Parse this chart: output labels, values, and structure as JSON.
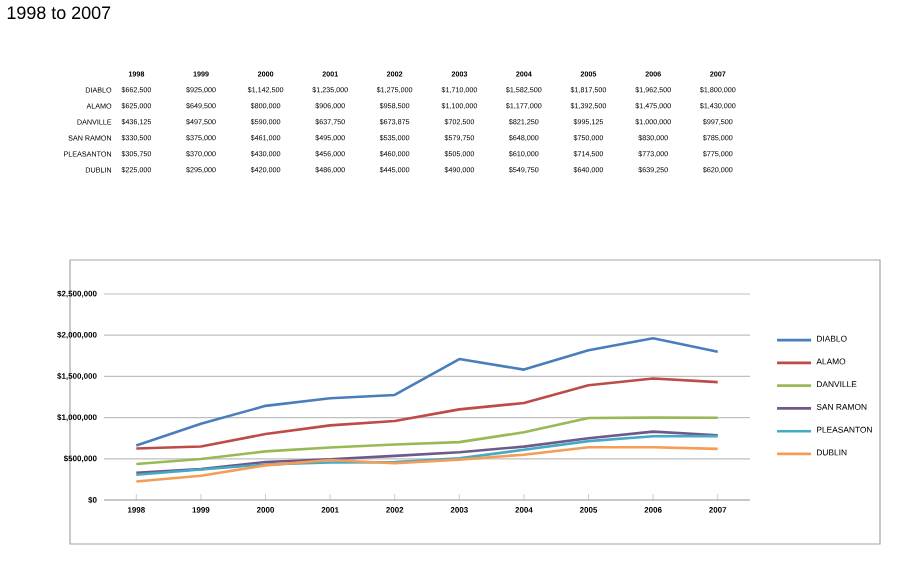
{
  "chart_data": {
    "type": "line",
    "title": "1998 to 2007",
    "categories": [
      "1998",
      "1999",
      "2000",
      "2001",
      "2002",
      "2003",
      "2004",
      "2005",
      "2006",
      "2007"
    ],
    "series": [
      {
        "name": "DIABLO",
        "color": "#4a7ebb",
        "values": [
          662500,
          925000,
          1142500,
          1235000,
          1275000,
          1710000,
          1582500,
          1817500,
          1962500,
          1800000
        ],
        "value_labels": [
          "$662,500",
          "$925,000",
          "$1,142,500",
          "$1,235,000",
          "$1,275,000",
          "$1,710,000",
          "$1,582,500",
          "$1,817,500",
          "$1,962,500",
          "$1,800,000"
        ]
      },
      {
        "name": "ALAMO",
        "color": "#be4b48",
        "values": [
          625000,
          649500,
          800000,
          906000,
          958500,
          1100000,
          1177000,
          1392500,
          1475000,
          1430000
        ],
        "value_labels": [
          "$625,000",
          "$649,500",
          "$800,000",
          "$906,000",
          "$958,500",
          "$1,100,000",
          "$1,177,000",
          "$1,392,500",
          "$1,475,000",
          "$1,430,000"
        ]
      },
      {
        "name": "DANVILLE",
        "color": "#98b954",
        "values": [
          436125,
          497500,
          590000,
          637750,
          673875,
          702500,
          821250,
          995125,
          1000000,
          997500
        ],
        "value_labels": [
          "$436,125",
          "$497,500",
          "$590,000",
          "$637,750",
          "$673,875",
          "$702,500",
          "$821,250",
          "$995,125",
          "$1,000,000",
          "$997,500"
        ]
      },
      {
        "name": "SAN RAMON",
        "color": "#6e5a8a",
        "values": [
          330500,
          375000,
          461000,
          495000,
          535000,
          579750,
          648000,
          750000,
          830000,
          785000
        ],
        "value_labels": [
          "$330,500",
          "$375,000",
          "$461,000",
          "$495,000",
          "$535,000",
          "$579,750",
          "$648,000",
          "$750,000",
          "$830,000",
          "$785,000"
        ]
      },
      {
        "name": "PLEASANTON",
        "color": "#46aac5",
        "values": [
          305750,
          370000,
          430000,
          456000,
          460000,
          505000,
          610000,
          714500,
          773000,
          775000
        ],
        "value_labels": [
          "$305,750",
          "$370,000",
          "$430,000",
          "$456,000",
          "$460,000",
          "$505,000",
          "$610,000",
          "$714,500",
          "$773,000",
          "$775,000"
        ]
      },
      {
        "name": "DUBLIN",
        "color": "#f59d56",
        "values": [
          225000,
          295000,
          420000,
          486000,
          445000,
          490000,
          549750,
          640000,
          639250,
          620000
        ],
        "value_labels": [
          "$225,000",
          "$295,000",
          "$420,000",
          "$486,000",
          "$445,000",
          "$490,000",
          "$549,750",
          "$640,000",
          "$639,250",
          "$620,000"
        ]
      }
    ],
    "ylim": [
      0,
      2500000
    ],
    "yticks": [
      {
        "value": 0,
        "label": "$0"
      },
      {
        "value": 500000,
        "label": "$500,000"
      },
      {
        "value": 1000000,
        "label": "$1,000,000"
      },
      {
        "value": 1500000,
        "label": "$1,500,000"
      },
      {
        "value": 2000000,
        "label": "$2,000,000"
      },
      {
        "value": 2500000,
        "label": "$2,500,000"
      }
    ],
    "grid": "y",
    "legend": "right",
    "marker": "none",
    "line_style": "solid"
  }
}
